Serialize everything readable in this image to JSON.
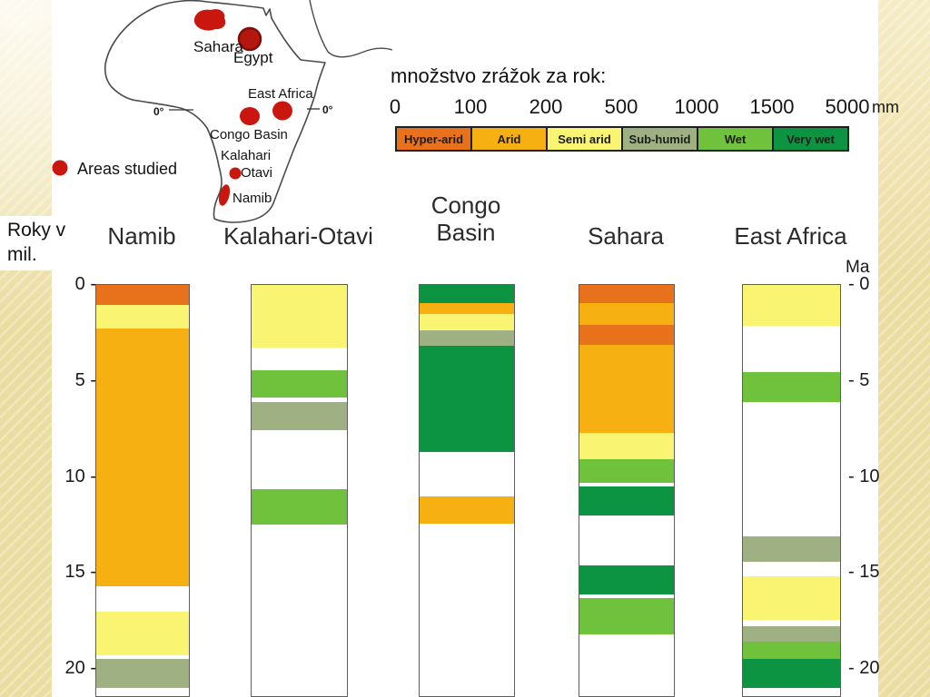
{
  "slide": {
    "background_base": "#ebdc9f"
  },
  "map": {
    "legend_label": "Areas studied",
    "equator_left": "0°",
    "equator_right": "0°",
    "marker_color": "#c9170f",
    "sites": [
      {
        "name": "Sahara"
      },
      {
        "name": "Egypt"
      },
      {
        "name": "East Africa"
      },
      {
        "name": "Congo Basin"
      },
      {
        "name": "Kalahari"
      },
      {
        "name": "Otavi"
      },
      {
        "name": "Namib"
      }
    ]
  },
  "rainfall_scale": {
    "title": "množstvo zrážok za rok:",
    "unit": "mm",
    "boundaries": [
      "0",
      "100",
      "200",
      "500",
      "1000",
      "1500",
      "5000"
    ],
    "classes": [
      {
        "key": "hyper_arid",
        "label": "Hyper-arid",
        "color": "#e8721c"
      },
      {
        "key": "arid",
        "label": "Arid",
        "color": "#f6b012"
      },
      {
        "key": "semi_arid",
        "label": "Semi arid",
        "color": "#f9f472"
      },
      {
        "key": "sub_humid",
        "label": "Sub-humid",
        "color": "#9fb183"
      },
      {
        "key": "wet",
        "label": "Wet",
        "color": "#70c13c"
      },
      {
        "key": "very_wet",
        "label": "Very wet",
        "color": "#0d9443"
      }
    ]
  },
  "time_axis": {
    "left_title": "Roky v\nmil.",
    "right_title": "Ma",
    "tick_values": [
      0,
      5,
      10,
      15,
      20
    ],
    "left_tick_labels": [
      "0 -",
      "5 -",
      "10 -",
      "15 -",
      "20 -"
    ],
    "right_tick_labels": [
      "- 0",
      "- 5",
      "- 10",
      "- 15",
      "- 20"
    ]
  },
  "chart_data": {
    "type": "heatmap",
    "x_categories": [
      "Namib",
      "Kalahari-Otavi",
      "Congo Basin",
      "Sahara",
      "East Africa"
    ],
    "y_axis": {
      "label": "Ma",
      "range": [
        0,
        21.4
      ],
      "ticks": [
        0,
        5,
        10,
        15,
        20
      ]
    },
    "value_classes": [
      "Hyper-arid",
      "Arid",
      "Semi arid",
      "Sub-humid",
      "Wet",
      "Very wet"
    ],
    "columns": [
      {
        "name": "Namib",
        "segments": [
          {
            "from": 0,
            "to": 1.05,
            "cls": "hyper_arid"
          },
          {
            "from": 1.05,
            "to": 2.25,
            "cls": "semi_arid"
          },
          {
            "from": 2.25,
            "to": 15.7,
            "cls": "arid"
          },
          {
            "from": 17.0,
            "to": 19.3,
            "cls": "semi_arid"
          },
          {
            "from": 19.5,
            "to": 21.0,
            "cls": "sub_humid"
          }
        ]
      },
      {
        "name": "Kalahari-Otavi",
        "segments": [
          {
            "from": 0,
            "to": 3.25,
            "cls": "semi_arid"
          },
          {
            "from": 4.45,
            "to": 5.85,
            "cls": "wet"
          },
          {
            "from": 6.1,
            "to": 7.55,
            "cls": "sub_humid"
          },
          {
            "from": 10.65,
            "to": 12.5,
            "cls": "wet"
          }
        ]
      },
      {
        "name": "Congo Basin",
        "two_line": true,
        "segments": [
          {
            "from": 0,
            "to": 0.95,
            "cls": "very_wet"
          },
          {
            "from": 0.95,
            "to": 1.5,
            "cls": "arid"
          },
          {
            "from": 1.5,
            "to": 2.35,
            "cls": "semi_arid"
          },
          {
            "from": 2.35,
            "to": 3.15,
            "cls": "sub_humid"
          },
          {
            "from": 3.15,
            "to": 8.7,
            "cls": "very_wet"
          },
          {
            "from": 11.0,
            "to": 12.45,
            "cls": "arid"
          }
        ]
      },
      {
        "name": "Sahara",
        "segments": [
          {
            "from": 0,
            "to": 0.95,
            "cls": "hyper_arid"
          },
          {
            "from": 0.95,
            "to": 2.1,
            "cls": "arid"
          },
          {
            "from": 2.1,
            "to": 3.1,
            "cls": "hyper_arid"
          },
          {
            "from": 3.1,
            "to": 7.7,
            "cls": "arid"
          },
          {
            "from": 7.7,
            "to": 9.1,
            "cls": "semi_arid"
          },
          {
            "from": 9.1,
            "to": 10.3,
            "cls": "wet"
          },
          {
            "from": 10.5,
            "to": 12.0,
            "cls": "very_wet"
          },
          {
            "from": 14.6,
            "to": 16.1,
            "cls": "very_wet"
          },
          {
            "from": 16.3,
            "to": 18.2,
            "cls": "wet"
          }
        ]
      },
      {
        "name": "East Africa",
        "segments": [
          {
            "from": 0,
            "to": 2.15,
            "cls": "semi_arid"
          },
          {
            "from": 4.55,
            "to": 6.1,
            "cls": "wet"
          },
          {
            "from": 13.1,
            "to": 14.4,
            "cls": "sub_humid"
          },
          {
            "from": 15.2,
            "to": 17.45,
            "cls": "semi_arid"
          },
          {
            "from": 17.8,
            "to": 18.6,
            "cls": "sub_humid"
          },
          {
            "from": 18.6,
            "to": 19.5,
            "cls": "wet"
          },
          {
            "from": 19.5,
            "to": 21.0,
            "cls": "very_wet"
          }
        ]
      }
    ]
  }
}
